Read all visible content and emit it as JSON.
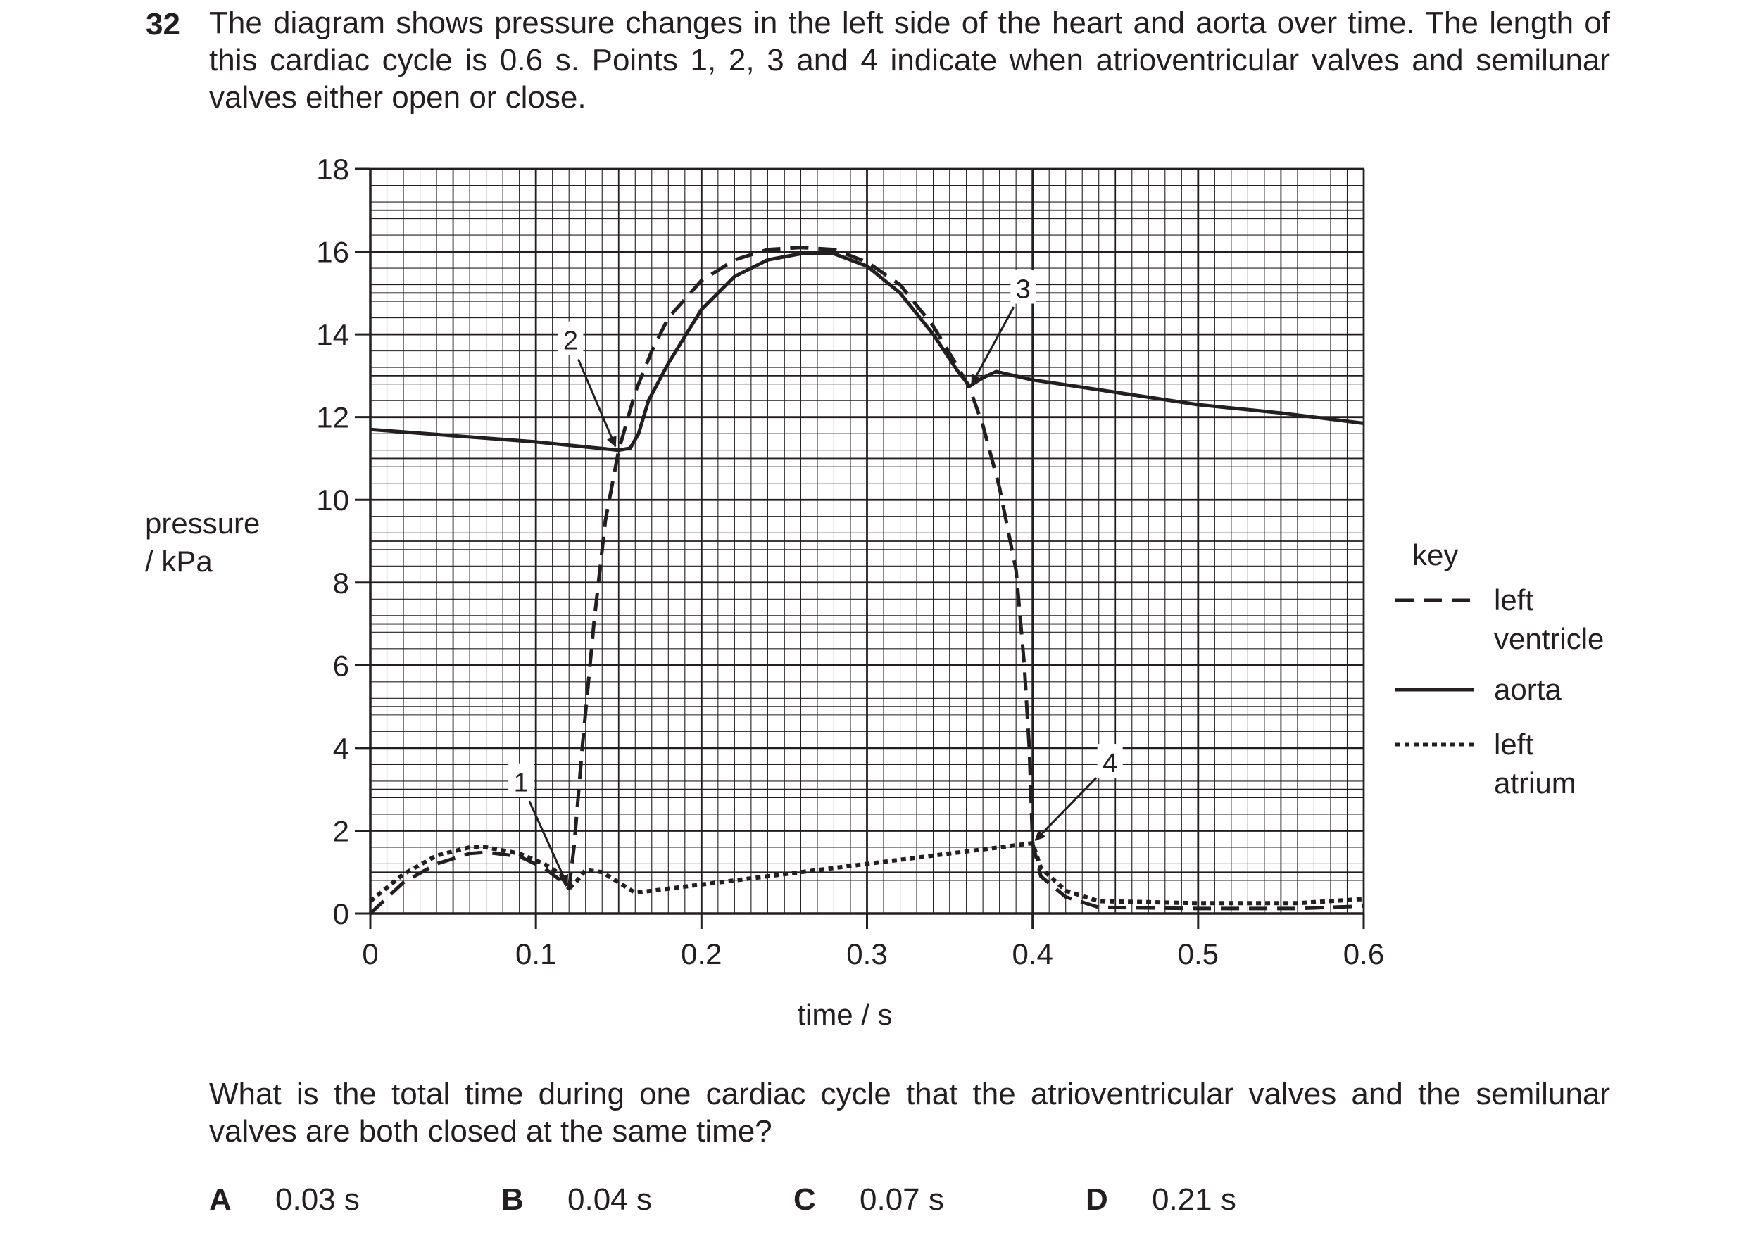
{
  "question": {
    "number": "32",
    "stem": "The diagram shows pressure changes in the left side of the heart and aorta over time. The length of this cardiac cycle is 0.6 s. Points 1, 2, 3 and 4 indicate when atrioventricular valves and semilunar valves either open or close.",
    "prompt": "What is the total time during one cardiac cycle that the atrioventricular valves and the semilunar valves are both closed at the same time?",
    "options": [
      {
        "letter": "A",
        "text": "0.03 s"
      },
      {
        "letter": "B",
        "text": "0.04 s"
      },
      {
        "letter": "C",
        "text": "0.07 s"
      },
      {
        "letter": "D",
        "text": "0.21 s"
      }
    ]
  },
  "chart_data": {
    "type": "line",
    "title": "",
    "xlabel": "time / s",
    "ylabel": [
      "pressure",
      "/ kPa"
    ],
    "xlim": [
      0,
      0.6
    ],
    "ylim": [
      0,
      18
    ],
    "x_ticks": [
      0,
      0.1,
      0.2,
      0.3,
      0.4,
      0.5,
      0.6
    ],
    "x_tick_labels": [
      "0",
      "0.1",
      "0.2",
      "0.3",
      "0.4",
      "0.5",
      "0.6"
    ],
    "y_ticks": [
      0,
      2,
      4,
      6,
      8,
      10,
      12,
      14,
      16,
      18
    ],
    "y_tick_labels": [
      "0",
      "2",
      "4",
      "6",
      "8",
      "10",
      "12",
      "14",
      "16",
      "18"
    ],
    "grid": true,
    "grid_minor_step": {
      "x": 0.01,
      "y": 0.4
    },
    "legend": {
      "title": "key",
      "placement": "right"
    },
    "series": [
      {
        "name": "left ventricle",
        "legend_lines": [
          "left",
          "ventricle"
        ],
        "style": "dashed",
        "points": [
          [
            0,
            0
          ],
          [
            0.02,
            0.75
          ],
          [
            0.04,
            1.2
          ],
          [
            0.06,
            1.45
          ],
          [
            0.07,
            1.48
          ],
          [
            0.09,
            1.38
          ],
          [
            0.105,
            1.1
          ],
          [
            0.115,
            0.8
          ],
          [
            0.12,
            0.6
          ],
          [
            0.123,
            1.6
          ],
          [
            0.128,
            4.0
          ],
          [
            0.135,
            7.0
          ],
          [
            0.142,
            9.5
          ],
          [
            0.15,
            11.2
          ],
          [
            0.16,
            12.6
          ],
          [
            0.17,
            13.6
          ],
          [
            0.18,
            14.4
          ],
          [
            0.2,
            15.3
          ],
          [
            0.22,
            15.8
          ],
          [
            0.24,
            16.05
          ],
          [
            0.26,
            16.1
          ],
          [
            0.28,
            16.05
          ],
          [
            0.3,
            15.75
          ],
          [
            0.32,
            15.2
          ],
          [
            0.34,
            14.2
          ],
          [
            0.355,
            13.2
          ],
          [
            0.362,
            12.7
          ],
          [
            0.37,
            11.8
          ],
          [
            0.38,
            10.3
          ],
          [
            0.39,
            8.3
          ],
          [
            0.395,
            6.0
          ],
          [
            0.398,
            4.0
          ],
          [
            0.4,
            1.7
          ],
          [
            0.405,
            0.9
          ],
          [
            0.42,
            0.4
          ],
          [
            0.44,
            0.15
          ],
          [
            0.5,
            0.12
          ],
          [
            0.56,
            0.12
          ],
          [
            0.6,
            0.18
          ]
        ]
      },
      {
        "name": "aorta",
        "legend_lines": [
          "aorta"
        ],
        "style": "solid",
        "points": [
          [
            0,
            11.7
          ],
          [
            0.05,
            11.55
          ],
          [
            0.1,
            11.4
          ],
          [
            0.15,
            11.2
          ],
          [
            0.157,
            11.25
          ],
          [
            0.162,
            11.6
          ],
          [
            0.168,
            12.4
          ],
          [
            0.18,
            13.3
          ],
          [
            0.2,
            14.6
          ],
          [
            0.22,
            15.4
          ],
          [
            0.24,
            15.8
          ],
          [
            0.26,
            15.95
          ],
          [
            0.28,
            15.95
          ],
          [
            0.3,
            15.65
          ],
          [
            0.32,
            15.0
          ],
          [
            0.34,
            14.0
          ],
          [
            0.355,
            13.1
          ],
          [
            0.362,
            12.75
          ],
          [
            0.37,
            12.95
          ],
          [
            0.378,
            13.1
          ],
          [
            0.4,
            12.9
          ],
          [
            0.45,
            12.6
          ],
          [
            0.5,
            12.3
          ],
          [
            0.55,
            12.1
          ],
          [
            0.6,
            11.85
          ]
        ]
      },
      {
        "name": "left atrium",
        "legend_lines": [
          "left",
          "atrium"
        ],
        "style": "dotted",
        "points": [
          [
            0,
            0.3
          ],
          [
            0.02,
            0.95
          ],
          [
            0.04,
            1.4
          ],
          [
            0.06,
            1.6
          ],
          [
            0.07,
            1.6
          ],
          [
            0.09,
            1.45
          ],
          [
            0.105,
            1.2
          ],
          [
            0.115,
            0.95
          ],
          [
            0.12,
            0.6
          ],
          [
            0.125,
            0.8
          ],
          [
            0.13,
            1.05
          ],
          [
            0.14,
            1.0
          ],
          [
            0.15,
            0.75
          ],
          [
            0.16,
            0.5
          ],
          [
            0.2,
            0.7
          ],
          [
            0.3,
            1.2
          ],
          [
            0.4,
            1.7
          ],
          [
            0.405,
            1.1
          ],
          [
            0.42,
            0.55
          ],
          [
            0.44,
            0.3
          ],
          [
            0.5,
            0.25
          ],
          [
            0.56,
            0.25
          ],
          [
            0.6,
            0.35
          ]
        ]
      }
    ],
    "annotations": [
      {
        "label": "1",
        "x": 0.12,
        "y": 0.6
      },
      {
        "label": "2",
        "x": 0.149,
        "y": 11.2
      },
      {
        "label": "3",
        "x": 0.362,
        "y": 12.7
      },
      {
        "label": "4",
        "x": 0.4,
        "y": 1.7
      }
    ]
  }
}
